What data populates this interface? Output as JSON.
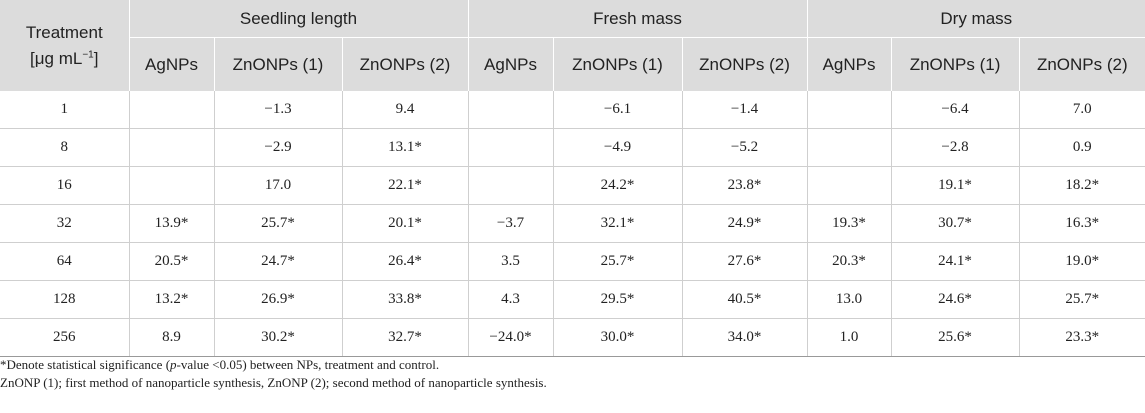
{
  "table": {
    "treatment_label": "Treatment",
    "unit_base": "[μg mL",
    "unit_sup": "−1",
    "unit_end": "]",
    "groups": [
      "Seedling length",
      "Fresh mass",
      "Dry mass"
    ],
    "subcolumns": [
      "AgNPs",
      "ZnONPs (1)",
      "ZnONPs (2)",
      "AgNPs",
      "ZnONPs (1)",
      "ZnONPs (2)",
      "AgNPs",
      "ZnONPs (1)",
      "ZnONPs (2)"
    ],
    "rows": [
      [
        "1",
        "",
        "−1.3",
        "9.4",
        "",
        "−6.1",
        "−1.4",
        "",
        "−6.4",
        "7.0"
      ],
      [
        "8",
        "",
        "−2.9",
        "13.1*",
        "",
        "−4.9",
        "−5.2",
        "",
        "−2.8",
        "0.9"
      ],
      [
        "16",
        "",
        "17.0",
        "22.1*",
        "",
        "24.2*",
        "23.8*",
        "",
        "19.1*",
        "18.2*"
      ],
      [
        "32",
        "13.9*",
        "25.7*",
        "20.1*",
        "−3.7",
        "32.1*",
        "24.9*",
        "19.3*",
        "30.7*",
        "16.3*"
      ],
      [
        "64",
        "20.5*",
        "24.7*",
        "26.4*",
        "3.5",
        "25.7*",
        "27.6*",
        "20.3*",
        "24.1*",
        "19.0*"
      ],
      [
        "128",
        "13.2*",
        "26.9*",
        "33.8*",
        "4.3",
        "29.5*",
        "40.5*",
        "13.0",
        "24.6*",
        "25.7*"
      ],
      [
        "256",
        "8.9",
        "30.2*",
        "32.7*",
        "−24.0*",
        "30.0*",
        "34.0*",
        "1.0",
        "25.6*",
        "23.3*"
      ]
    ]
  },
  "footnotes": {
    "line1_pre": "*Denote statistical significance (",
    "line1_italic": "p",
    "line1_post": "-value <0.05) between NPs, treatment and control.",
    "line2": "ZnONP (1); first method of nanoparticle synthesis, ZnONP (2); second method of nanoparticle synthesis."
  }
}
